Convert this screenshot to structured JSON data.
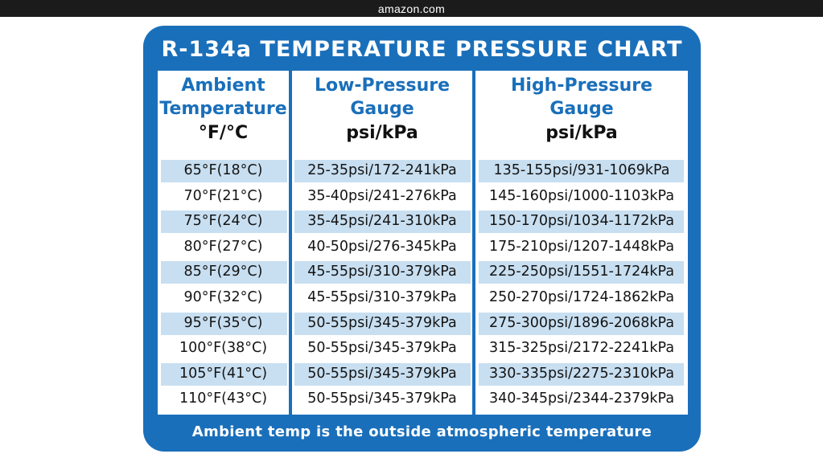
{
  "topbar": {
    "site": "amazon.com"
  },
  "chart": {
    "title": "R-134a TEMPERATURE PRESSURE CHART",
    "headers": [
      {
        "line1": "Ambient",
        "line2": "Temperature",
        "unit": "°F/°C"
      },
      {
        "line1": "Low-Pressure",
        "line2": "Gauge",
        "unit": "psi/kPa"
      },
      {
        "line1": "High-Pressure",
        "line2": "Gauge",
        "unit": "psi/kPa"
      }
    ],
    "rows": [
      [
        "65°F(18°C)",
        "25-35psi/172-241kPa",
        "135-155psi/931-1069kPa"
      ],
      [
        "70°F(21°C)",
        "35-40psi/241-276kPa",
        "145-160psi/1000-1103kPa"
      ],
      [
        "75°F(24°C)",
        "35-45psi/241-310kPa",
        "150-170psi/1034-1172kPa"
      ],
      [
        "80°F(27°C)",
        "40-50psi/276-345kPa",
        "175-210psi/1207-1448kPa"
      ],
      [
        "85°F(29°C)",
        "45-55psi/310-379kPa",
        "225-250psi/1551-1724kPa"
      ],
      [
        "90°F(32°C)",
        "45-55psi/310-379kPa",
        "250-270psi/1724-1862kPa"
      ],
      [
        "95°F(35°C)",
        "50-55psi/345-379kPa",
        "275-300psi/1896-2068kPa"
      ],
      [
        "100°F(38°C)",
        "50-55psi/345-379kPa",
        "315-325psi/2172-2241kPa"
      ],
      [
        "105°F(41°C)",
        "50-55psi/345-379kPa",
        "330-335psi/2275-2310kPa"
      ],
      [
        "110°F(43°C)",
        "50-55psi/345-379kPa",
        "340-345psi/2344-2379kPa"
      ]
    ],
    "footer": "Ambient temp is the outside atmospheric temperature",
    "colors": {
      "brand_blue": "#1a6fba",
      "stripe": "#c8dff1"
    }
  }
}
